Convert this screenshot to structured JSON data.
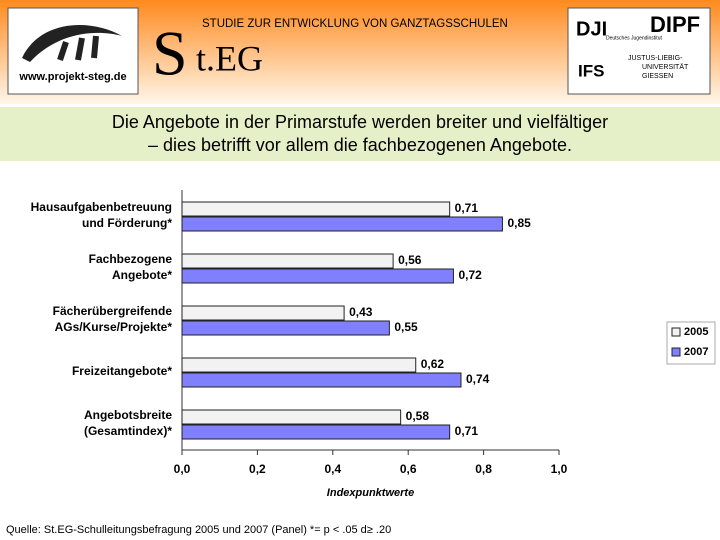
{
  "header": {
    "url": "www.projekt-steg.de",
    "logo_big": "S",
    "logo_rest": "t.EG",
    "study": "STUDIE ZUR ENTWICKLUNG VON GANZTAGSSCHULEN",
    "dji": "DJI",
    "dji_sub": "Deutsches Jugendinstitut",
    "dipf": "DIPF",
    "ifs": "IFS",
    "uni": [
      "JUSTUS-LIEBIG-",
      "UNIVERSITÄT",
      "GIESSEN"
    ]
  },
  "slide_title": [
    "Die Angebote in der Primarstufe werden breiter und vielfältiger",
    "– dies betrifft vor allem die fachbezogenen Angebote."
  ],
  "footer": "Quelle: St.EG-Schulleitungsbefragung 2005 und 2007 (Panel)  *= p < .05  d≥ .20",
  "chart_data": {
    "type": "hbar",
    "categories": [
      [
        "Hausaufgabenbetreuung",
        "und Förderung*"
      ],
      [
        "Fachbezogene",
        "Angebote*"
      ],
      [
        "Fächerübergreifende",
        "AGs/Kurse/Projekte*"
      ],
      [
        "Freizeitangebote*"
      ],
      [
        "Angebotsbreite",
        "(Gesamtindex)*"
      ]
    ],
    "series": [
      {
        "name": "2005",
        "color": "#f2f2f2",
        "values": [
          0.71,
          0.56,
          0.43,
          0.62,
          0.58
        ],
        "value_labels": [
          "0,71",
          "0,56",
          "0,43",
          "0,62",
          "0,58"
        ]
      },
      {
        "name": "2007",
        "color": "#8080ff",
        "values": [
          0.85,
          0.72,
          0.55,
          0.74,
          0.71
        ],
        "value_labels": [
          "0,85",
          "0,72",
          "0,55",
          "0,74",
          "0,71"
        ]
      }
    ],
    "xlabel": "Indexpunktwerte",
    "xlim": [
      0,
      1
    ],
    "xticks": [
      {
        "value": 0,
        "label": "0,0"
      },
      {
        "value": 0.2,
        "label": "0,2"
      },
      {
        "value": 0.4,
        "label": "0,4"
      },
      {
        "value": 0.6,
        "label": "0,6"
      },
      {
        "value": 0.8,
        "label": "0,8"
      },
      {
        "value": 1,
        "label": "1,0"
      }
    ],
    "legend": "right"
  }
}
